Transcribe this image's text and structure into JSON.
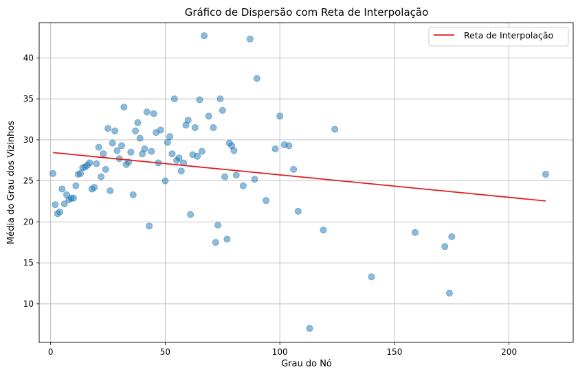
{
  "chart_data": {
    "type": "scatter",
    "title": "Gráfico de Dispersão com Reta de Interpolação",
    "xlabel": "Grau do Nó",
    "ylabel": "Média do Grau dos Vizinhos",
    "xlim": [
      -5,
      228
    ],
    "ylim": [
      5.3,
      44.3
    ],
    "xticks": [
      0,
      50,
      100,
      150,
      200
    ],
    "yticks": [
      10,
      15,
      20,
      25,
      30,
      35,
      40
    ],
    "grid": true,
    "legend_position": "top-right",
    "colors": {
      "points": "#1f77b4",
      "line": "#e41a1c"
    },
    "series": [
      {
        "kind": "points",
        "points": [
          [
            1,
            25.9
          ],
          [
            2,
            22.1
          ],
          [
            3,
            21.0
          ],
          [
            4,
            21.2
          ],
          [
            5,
            24.0
          ],
          [
            6,
            22.2
          ],
          [
            7,
            23.3
          ],
          [
            8,
            22.7
          ],
          [
            9,
            22.9
          ],
          [
            10,
            22.9
          ],
          [
            11,
            24.4
          ],
          [
            12,
            25.8
          ],
          [
            13,
            25.9
          ],
          [
            14,
            26.6
          ],
          [
            15,
            26.7
          ],
          [
            16,
            26.9
          ],
          [
            17,
            27.2
          ],
          [
            18,
            24.0
          ],
          [
            19,
            24.2
          ],
          [
            20,
            27.1
          ],
          [
            21,
            29.1
          ],
          [
            22,
            25.5
          ],
          [
            23,
            28.3
          ],
          [
            24,
            26.4
          ],
          [
            25,
            31.4
          ],
          [
            26,
            23.8
          ],
          [
            27,
            29.6
          ],
          [
            28,
            31.1
          ],
          [
            29,
            28.7
          ],
          [
            30,
            27.7
          ],
          [
            31,
            29.3
          ],
          [
            32,
            34.0
          ],
          [
            33,
            27.0
          ],
          [
            34,
            27.3
          ],
          [
            35,
            28.5
          ],
          [
            36,
            23.3
          ],
          [
            37,
            31.1
          ],
          [
            38,
            32.1
          ],
          [
            39,
            30.2
          ],
          [
            40,
            28.3
          ],
          [
            41,
            28.9
          ],
          [
            42,
            33.4
          ],
          [
            43,
            19.5
          ],
          [
            44,
            28.6
          ],
          [
            45,
            33.2
          ],
          [
            46,
            30.9
          ],
          [
            47,
            27.2
          ],
          [
            48,
            31.2
          ],
          [
            50,
            25.0
          ],
          [
            51,
            29.7
          ],
          [
            52,
            30.4
          ],
          [
            53,
            28.3
          ],
          [
            54,
            35.0
          ],
          [
            55,
            27.5
          ],
          [
            56,
            27.8
          ],
          [
            57,
            26.2
          ],
          [
            58,
            27.2
          ],
          [
            59,
            31.8
          ],
          [
            60,
            32.4
          ],
          [
            61,
            20.9
          ],
          [
            62,
            28.2
          ],
          [
            63,
            31.5
          ],
          [
            64,
            28.0
          ],
          [
            65,
            34.9
          ],
          [
            66,
            28.6
          ],
          [
            67,
            42.7
          ],
          [
            69,
            32.9
          ],
          [
            71,
            31.5
          ],
          [
            72,
            17.5
          ],
          [
            73,
            19.6
          ],
          [
            74,
            35.0
          ],
          [
            75,
            33.6
          ],
          [
            76,
            25.5
          ],
          [
            77,
            17.9
          ],
          [
            78,
            29.6
          ],
          [
            79,
            29.3
          ],
          [
            80,
            28.7
          ],
          [
            81,
            25.7
          ],
          [
            84,
            24.4
          ],
          [
            87,
            42.3
          ],
          [
            89,
            25.2
          ],
          [
            90,
            37.5
          ],
          [
            94,
            22.6
          ],
          [
            98,
            28.9
          ],
          [
            100,
            32.9
          ],
          [
            102,
            29.4
          ],
          [
            104,
            29.3
          ],
          [
            106,
            26.4
          ],
          [
            108,
            21.3
          ],
          [
            113,
            7.0
          ],
          [
            119,
            19.0
          ],
          [
            124,
            31.3
          ],
          [
            140,
            13.3
          ],
          [
            159,
            18.7
          ],
          [
            172,
            17.0
          ],
          [
            174,
            11.3
          ],
          [
            175,
            18.2
          ],
          [
            216,
            25.8
          ]
        ]
      },
      {
        "kind": "line",
        "name": "Reta de Interpolação",
        "points": [
          [
            1,
            28.45
          ],
          [
            216,
            22.55
          ]
        ]
      }
    ]
  }
}
